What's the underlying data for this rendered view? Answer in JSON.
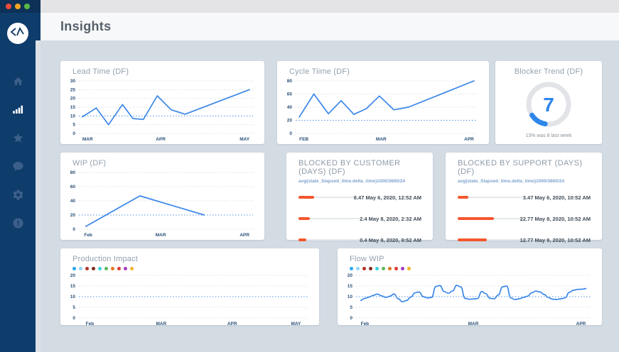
{
  "window": {
    "traffic_lights": {
      "close": "#ee4b3c",
      "minimize": "#f5a623",
      "zoom": "#58b947"
    }
  },
  "header": {
    "title": "Insights"
  },
  "sidebar": {
    "logo": "code-caret-logo",
    "items": [
      {
        "id": "home",
        "icon": "home-icon",
        "active": false
      },
      {
        "id": "insights",
        "icon": "bar-chart-icon",
        "active": true
      },
      {
        "id": "favorites",
        "icon": "star-icon",
        "active": false
      },
      {
        "id": "comments",
        "icon": "chat-icon",
        "active": false
      },
      {
        "id": "settings",
        "icon": "gear-icon",
        "active": false
      },
      {
        "id": "alerts",
        "icon": "alert-circle-icon",
        "active": false
      }
    ]
  },
  "colors": {
    "accent_line": "#3b87e8",
    "threshold": "#4f94e8",
    "bar_orange": "#f4572e",
    "sidebar": "#0e3c6b",
    "donut_blue": "#2e86ea",
    "donut_track": "#e2e4e7"
  },
  "legend_colors": [
    "#29a8f2",
    "#8fd6f2",
    "#b23226",
    "#7e2a1e",
    "#35d2dd",
    "#5cb85c",
    "#e0761f",
    "#e0392e",
    "#a53cc4",
    "#f2b52a"
  ],
  "cards": {
    "lead_time": {
      "title": "Lead Time (DF)"
    },
    "cycle_time": {
      "title": "Cycle Tiime (DF)"
    },
    "blocker_trend": {
      "title": "Blocker Trend (DF)",
      "value": "7",
      "caption": "13% was 8 last week"
    },
    "wip": {
      "title": "WIP (DF)"
    },
    "blocked_customer": {
      "title": "BLOCKED BY CUSTOMER (DAYS) (DF)",
      "subtitle": "avg(state_Slapsed_time.delta_time)1000/3600/24"
    },
    "blocked_support": {
      "title": "BLOCKED BY SUPPORT (DAYS) (DF)",
      "subtitle": "avg(state_Slapsed_time.delta_time)1000/3600/24"
    },
    "production_impact": {
      "title": "Production Impact"
    },
    "flow_wip": {
      "title": "Flow WIP"
    }
  },
  "chart_data": [
    {
      "id": "lead_time",
      "type": "line",
      "title": "Lead Time (DF)",
      "ylim": [
        0,
        30
      ],
      "yticks": [
        0,
        5,
        10,
        15,
        20,
        25,
        30
      ],
      "threshold": 10,
      "xticks": [
        {
          "label": "MAR",
          "pos": 0.02
        },
        {
          "label": "APR",
          "pos": 0.47
        },
        {
          "label": "MAY",
          "pos": 0.98
        }
      ],
      "x": [
        0.02,
        0.1,
        0.17,
        0.25,
        0.31,
        0.37,
        0.45,
        0.53,
        0.61,
        0.98
      ],
      "values": [
        9.5,
        14.5,
        5,
        16.5,
        8.5,
        8,
        21.5,
        13.5,
        11,
        25
      ],
      "smooth": false,
      "grid": "dotted",
      "legend": false
    },
    {
      "id": "cycle_time",
      "type": "line",
      "title": "Cycle Tiime (DF)",
      "ylim": [
        0,
        80
      ],
      "yticks": [
        0,
        20,
        40,
        60,
        80
      ],
      "threshold": 20,
      "xticks": [
        {
          "label": "FEB",
          "pos": 0.02
        },
        {
          "label": "MAR",
          "pos": 0.47
        },
        {
          "label": "APR",
          "pos": 0.98
        }
      ],
      "x": [
        0.02,
        0.1,
        0.18,
        0.25,
        0.32,
        0.39,
        0.46,
        0.54,
        0.62,
        0.98
      ],
      "values": [
        25,
        60,
        30,
        50,
        29,
        38,
        57,
        36,
        40,
        80
      ],
      "smooth": false,
      "grid": "dotted",
      "legend": false
    },
    {
      "id": "blocker_trend",
      "type": "donut",
      "title": "Blocker Trend (DF)",
      "value": 7,
      "percent": 13,
      "caption": "13% was 8 last week"
    },
    {
      "id": "wip",
      "type": "line",
      "title": "WIP (DF)",
      "ylim": [
        0,
        80
      ],
      "yticks": [
        0,
        20,
        40,
        60,
        80
      ],
      "threshold": 20,
      "xticks": [
        {
          "label": "Feb",
          "pos": 0.03
        },
        {
          "label": "MAR",
          "pos": 0.47
        },
        {
          "label": "APR",
          "pos": 0.98
        }
      ],
      "x": [
        0.04,
        0.35,
        0.72
      ],
      "values": [
        4,
        47,
        20
      ],
      "smooth": false,
      "grid": "dotted",
      "legend": false
    },
    {
      "id": "blocked_customer",
      "type": "bar",
      "title": "BLOCKED BY CUSTOMER (DAYS) (DF)",
      "values": [
        8.47,
        2.4,
        0.4
      ],
      "labels": [
        "8.47 May 6, 2020, 12:52 AM",
        "2.4 May 8, 2020, 2:32 AM",
        "0.4 May 9, 2020, 9:52 AM"
      ],
      "fractions": [
        0.28,
        0.18,
        0.13
      ]
    },
    {
      "id": "blocked_support",
      "type": "bar",
      "title": "BLOCKED BY SUPPORT (DAYS) (DF)",
      "values": [
        3.47,
        22.77,
        12.77
      ],
      "labels": [
        "3.47 May 6, 2020, 10:52 AM",
        "22.77 May 8, 2020, 10:52 AM",
        "12.77 May 9, 2020, 10:52 AM"
      ],
      "fractions": [
        0.16,
        0.58,
        0.47
      ]
    },
    {
      "id": "production_impact",
      "type": "line",
      "title": "Production Impact",
      "ylim": [
        0,
        20
      ],
      "yticks": [
        0,
        5,
        10,
        15,
        20
      ],
      "threshold": 10,
      "xticks": [
        {
          "label": "Feb",
          "pos": 0.03
        },
        {
          "label": "MAR",
          "pos": 0.36
        },
        {
          "label": "APR",
          "pos": 0.67
        },
        {
          "label": "MAY",
          "pos": 0.97
        }
      ],
      "x": [],
      "values": [],
      "smooth": false,
      "grid": "dotted",
      "legend": true
    },
    {
      "id": "flow_wip",
      "type": "line",
      "title": "Flow WIP",
      "ylim": [
        0,
        20
      ],
      "yticks": [
        0,
        5,
        10,
        15,
        20
      ],
      "threshold": 10,
      "xticks": [
        {
          "label": "Feb",
          "pos": 0.02
        },
        {
          "label": "MAR",
          "pos": 0.5
        },
        {
          "label": "APR",
          "pos": 0.98
        }
      ],
      "x": [],
      "values": [
        8.3,
        9.2,
        9.8,
        10.6,
        11.2,
        10.4,
        9.6,
        10.2,
        11.3,
        9.0,
        7.6,
        8.2,
        9.8,
        11.8,
        12.2,
        10.0,
        9.4,
        9.6,
        14.8,
        15.2,
        12.4,
        11.6,
        12.6,
        15.3,
        14.6,
        9.2,
        8.8,
        8.9,
        9.1,
        12.4,
        11.4,
        9.2,
        9.0,
        10.8,
        14.6,
        15.0,
        9.4,
        8.6,
        9.0,
        9.6,
        10.2,
        11.8,
        12.6,
        12.2,
        11.0,
        9.6,
        8.8,
        8.7,
        9.0,
        9.4,
        12.0,
        13.0,
        13.4,
        13.5,
        13.8
      ],
      "smooth": true,
      "grid": "dotted",
      "legend": true
    }
  ]
}
